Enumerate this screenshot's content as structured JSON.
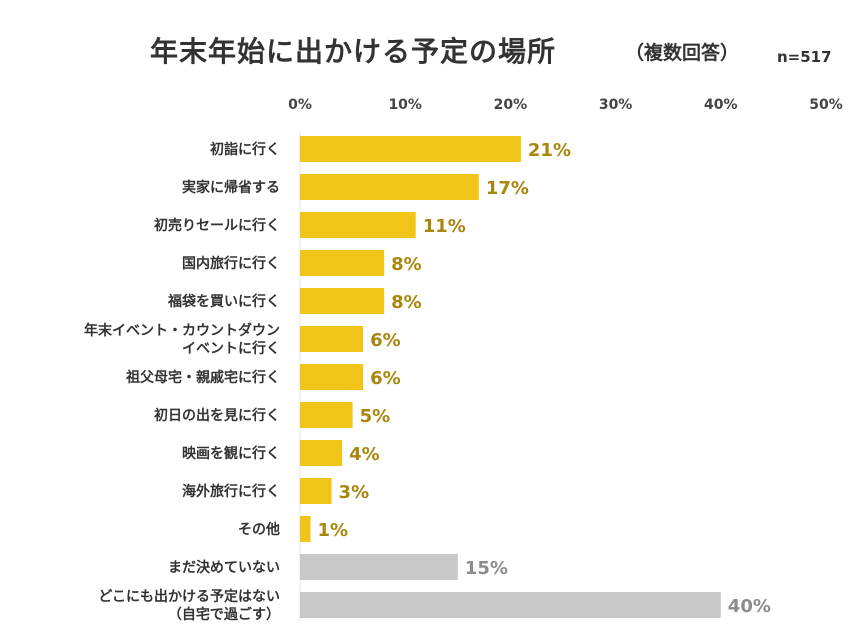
{
  "title": "年末年始に出かける予定の場所",
  "subtitle": "（複数回答）",
  "sample_size": "n=517",
  "colors": {
    "primary": "#f0c419",
    "secondary": "#c8c8c8",
    "primary_label": "#a8870c",
    "secondary_label": "#8c8c8c"
  },
  "chart_data": {
    "type": "bar",
    "orientation": "horizontal",
    "title": "年末年始に出かける予定の場所",
    "subtitle": "（複数回答）",
    "xlim": [
      0,
      50
    ],
    "x_ticks": [
      "0%",
      "10%",
      "20%",
      "30%",
      "40%",
      "50%"
    ],
    "categories": [
      [
        "初詣に行く"
      ],
      [
        "実家に帰省する"
      ],
      [
        "初売りセールに行く"
      ],
      [
        "国内旅行に行く"
      ],
      [
        "福袋を買いに行く"
      ],
      [
        "年末イベント・カウントダウン",
        "イベントに行く"
      ],
      [
        "祖父母宅・親戚宅に行く"
      ],
      [
        "初日の出を見に行く"
      ],
      [
        "映画を観に行く"
      ],
      [
        "海外旅行に行く"
      ],
      [
        "その他"
      ],
      [
        "まだ決めていない"
      ],
      [
        "どこにも出かける予定はない",
        "（自宅で過ごす）"
      ]
    ],
    "values": [
      21,
      17,
      11,
      8,
      8,
      6,
      6,
      5,
      4,
      3,
      1,
      15,
      40
    ],
    "value_labels": [
      "21%",
      "17%",
      "11%",
      "8%",
      "8%",
      "6%",
      "6%",
      "5%",
      "4%",
      "3%",
      "1%",
      "15%",
      "40%"
    ],
    "highlight": [
      "primary",
      "primary",
      "primary",
      "primary",
      "primary",
      "primary",
      "primary",
      "primary",
      "primary",
      "primary",
      "primary",
      "secondary",
      "secondary"
    ]
  }
}
